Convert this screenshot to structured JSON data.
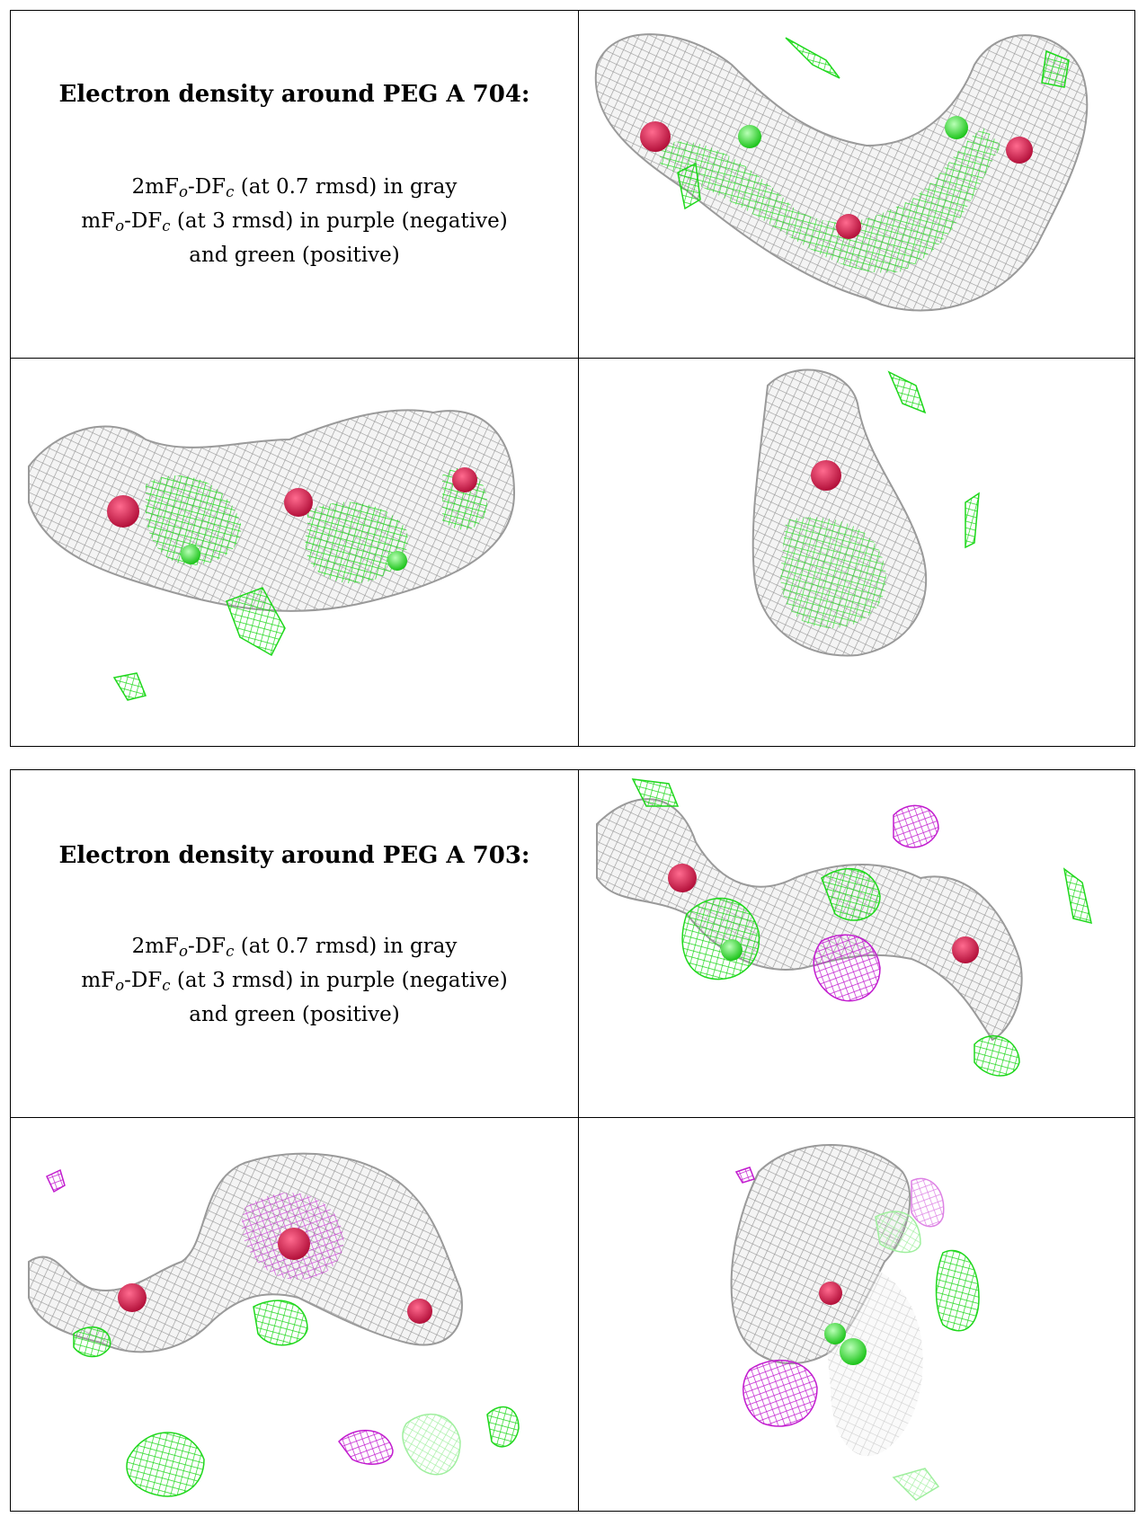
{
  "panels": [
    {
      "title": "Electron density around PEG A 704:",
      "line1": {
        "pre": "2mF",
        "sub1": "o",
        "mid": "-DF",
        "sub2": "c",
        "post": " (at 0.7 rmsd) in gray"
      },
      "line2": {
        "pre": "mF",
        "sub1": "o",
        "mid": "-DF",
        "sub2": "c",
        "post": " (at 3 rmsd) in purple (negative)"
      },
      "line3": "and green (positive)"
    },
    {
      "title": "Electron density around PEG A 703:",
      "line1": {
        "pre": "2mF",
        "sub1": "o",
        "mid": "-DF",
        "sub2": "c",
        "post": " (at 0.7 rmsd) in gray"
      },
      "line2": {
        "pre": "mF",
        "sub1": "o",
        "mid": "-DF",
        "sub2": "c",
        "post": " (at 3 rmsd) in purple (negative)"
      },
      "line3": "and green (positive)"
    }
  ],
  "colors": {
    "mesh_gray": "#9c9c9c",
    "positive_green": "#22e01f",
    "negative_purple": "#c21ccf",
    "oxygen_red": "#d61d4d",
    "carbon_green": "#3ee83a"
  }
}
